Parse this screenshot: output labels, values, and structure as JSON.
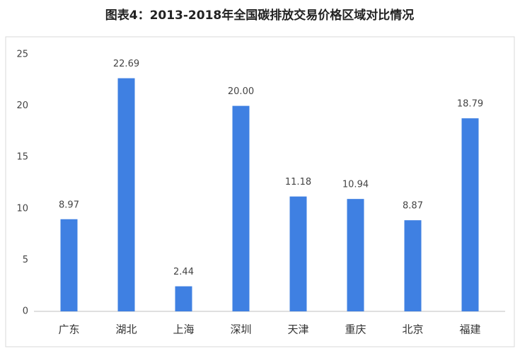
{
  "chart_data": {
    "type": "bar",
    "title": "图表4：2013-2018年全国碳排放交易价格区域对比情况",
    "categories": [
      "广东",
      "湖北",
      "上海",
      "深圳",
      "天津",
      "重庆",
      "北京",
      "福建"
    ],
    "values": [
      8.97,
      22.69,
      2.44,
      20.0,
      11.18,
      10.94,
      8.87,
      18.79
    ],
    "value_labels": [
      "8.97",
      "22.69",
      "2.44",
      "20.00",
      "11.18",
      "10.94",
      "8.87",
      "18.79"
    ],
    "color": "#3f80e2",
    "ylim": [
      0,
      25
    ],
    "yticks": [
      0,
      5,
      10,
      15,
      20,
      25
    ],
    "grid": false
  }
}
